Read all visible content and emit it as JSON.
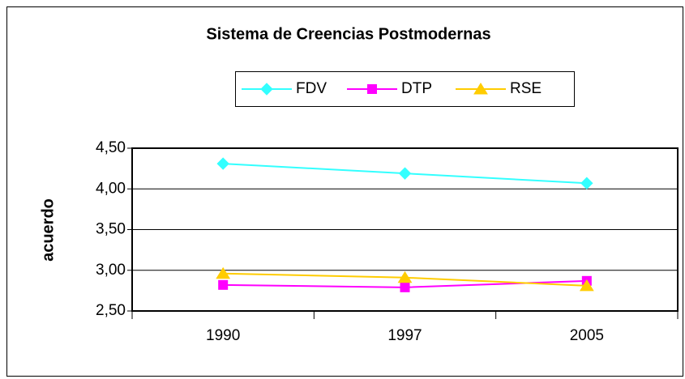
{
  "chart_data": {
    "type": "line",
    "title": "Sistema de Creencias Postmodernas",
    "y_label": "acuerdo",
    "categories": [
      "1990",
      "1997",
      "2005"
    ],
    "series": [
      {
        "name": "FDV",
        "color": "#33ffff",
        "marker": "diamond",
        "values": [
          4.31,
          4.19,
          4.07
        ]
      },
      {
        "name": "DTP",
        "color": "#ff00ff",
        "marker": "square",
        "values": [
          2.82,
          2.79,
          2.87
        ]
      },
      {
        "name": "RSE",
        "color": "#ffcc00",
        "marker": "triangle",
        "values": [
          2.96,
          2.91,
          2.81
        ]
      }
    ],
    "ylim": [
      2.5,
      4.5
    ],
    "yticks": [
      {
        "value": 2.5,
        "label": "2,50"
      },
      {
        "value": 3,
        "label": "3,00"
      },
      {
        "value": 3.5,
        "label": "3,50"
      },
      {
        "value": 4,
        "label": "4,00"
      },
      {
        "value": 4.5,
        "label": "4,50"
      }
    ],
    "grid": true
  }
}
